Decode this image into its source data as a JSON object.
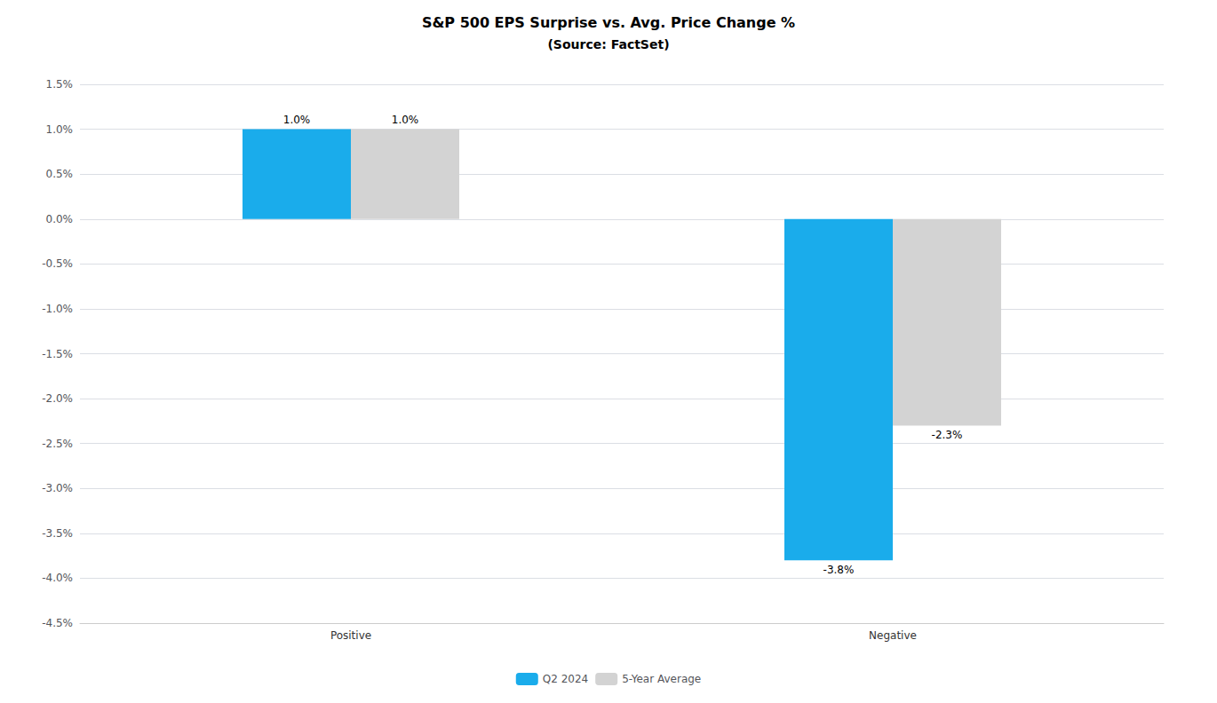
{
  "chart_data": {
    "type": "bar",
    "title": "S&P 500 EPS Surprise vs. Avg. Price Change %",
    "subtitle": "(Source: FactSet)",
    "categories": [
      "Positive",
      "Negative"
    ],
    "series": [
      {
        "name": "Q2 2024",
        "color": "#1AACEB",
        "values": [
          1.0,
          -3.8
        ],
        "value_labels": [
          "1.0%",
          "-3.8%"
        ]
      },
      {
        "name": "5-Year Average",
        "color": "#D3D3D3",
        "values": [
          1.0,
          -2.3
        ],
        "value_labels": [
          "1.0%",
          "-2.3%"
        ]
      }
    ],
    "ylim": [
      -4.5,
      1.5
    ],
    "yticks": [
      {
        "value": -4.5,
        "label": "-4.5%"
      },
      {
        "value": -4.0,
        "label": "-4.0%"
      },
      {
        "value": -3.5,
        "label": "-3.5%"
      },
      {
        "value": -3.0,
        "label": "-3.0%"
      },
      {
        "value": -2.5,
        "label": "-2.5%"
      },
      {
        "value": -2.0,
        "label": "-2.0%"
      },
      {
        "value": -1.5,
        "label": "-1.5%"
      },
      {
        "value": -1.0,
        "label": "-1.0%"
      },
      {
        "value": -0.5,
        "label": "-0.5%"
      },
      {
        "value": 0.0,
        "label": "0.0%"
      },
      {
        "value": 0.5,
        "label": "0.5%"
      },
      {
        "value": 1.0,
        "label": "1.0%"
      },
      {
        "value": 1.5,
        "label": "1.5%"
      }
    ],
    "grid": true,
    "legend": "bottom",
    "data_labels": true
  }
}
